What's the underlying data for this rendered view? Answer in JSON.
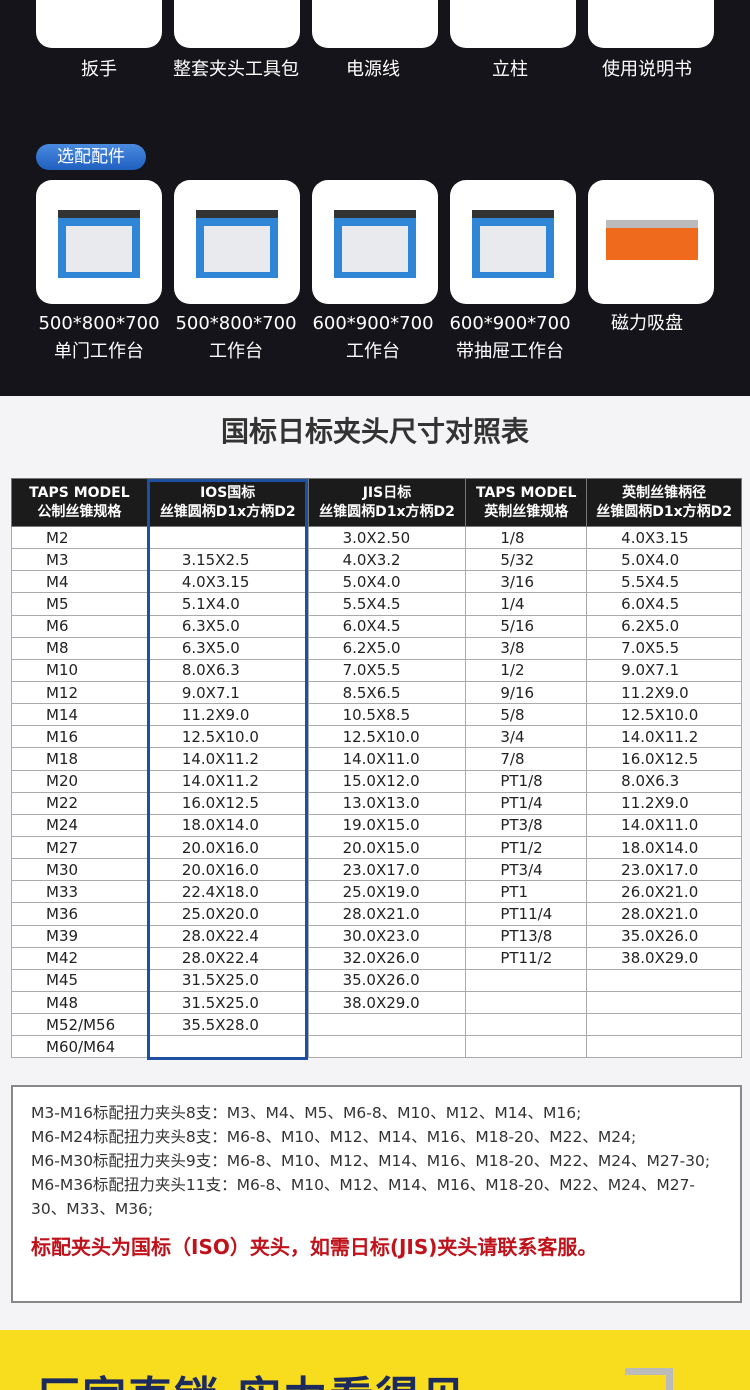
{
  "included": {
    "items": [
      "扳手",
      "整套夹头工具包",
      "电源线",
      "立柱",
      "使用说明书"
    ]
  },
  "optional": {
    "badge": "选配配件",
    "items": [
      {
        "line1": "500*800*700",
        "line2": "单门工作台",
        "icon": "workbench-image"
      },
      {
        "line1": "500*800*700",
        "line2": "工作台",
        "icon": "workbench-image"
      },
      {
        "line1": "600*900*700",
        "line2": "工作台",
        "icon": "workbench-image"
      },
      {
        "line1": "600*900*700",
        "line2": "带抽屉工作台",
        "icon": "workbench-image"
      },
      {
        "line1": "磁力吸盘",
        "line2": "",
        "icon": "magnetic-chuck-image"
      }
    ]
  },
  "table": {
    "title": "国标日标夹头尺寸对照表",
    "headers": [
      [
        "TAPS MODEL",
        "公制丝锥规格"
      ],
      [
        "IOS国标",
        "丝锥圆柄D1x方柄D2"
      ],
      [
        "JIS日标",
        "丝锥圆柄D1x方柄D2"
      ],
      [
        "TAPS MODEL",
        "英制丝锥规格"
      ],
      [
        "英制丝锥柄径",
        "丝锥圆柄D1x方柄D2"
      ]
    ],
    "highlight_color": "#1d4fa3",
    "rows": [
      [
        "M2",
        "",
        "3.0X2.50",
        "1/8",
        "4.0X3.15"
      ],
      [
        "M3",
        "3.15X2.5",
        "4.0X3.2",
        "5/32",
        "5.0X4.0"
      ],
      [
        "M4",
        "4.0X3.15",
        "5.0X4.0",
        "3/16",
        "5.5X4.5"
      ],
      [
        "M5",
        "5.1X4.0",
        "5.5X4.5",
        "1/4",
        "6.0X4.5"
      ],
      [
        "M6",
        "6.3X5.0",
        "6.0X4.5",
        "5/16",
        "6.2X5.0"
      ],
      [
        "M8",
        "6.3X5.0",
        "6.2X5.0",
        "3/8",
        "7.0X5.5"
      ],
      [
        "M10",
        "8.0X6.3",
        "7.0X5.5",
        "1/2",
        "9.0X7.1"
      ],
      [
        "M12",
        "9.0X7.1",
        "8.5X6.5",
        "9/16",
        "11.2X9.0"
      ],
      [
        "M14",
        "11.2X9.0",
        "10.5X8.5",
        "5/8",
        "12.5X10.0"
      ],
      [
        "M16",
        "12.5X10.0",
        "12.5X10.0",
        "3/4",
        "14.0X11.2"
      ],
      [
        "M18",
        "14.0X11.2",
        "14.0X11.0",
        "7/8",
        "16.0X12.5"
      ],
      [
        "M20",
        "14.0X11.2",
        "15.0X12.0",
        "PT1/8",
        "8.0X6.3"
      ],
      [
        "M22",
        "16.0X12.5",
        "13.0X13.0",
        "PT1/4",
        "11.2X9.0"
      ],
      [
        "M24",
        "18.0X14.0",
        "19.0X15.0",
        "PT3/8",
        "14.0X11.0"
      ],
      [
        "M27",
        "20.0X16.0",
        "20.0X15.0",
        "PT1/2",
        "18.0X14.0"
      ],
      [
        "M30",
        "20.0X16.0",
        "23.0X17.0",
        "PT3/4",
        "23.0X17.0"
      ],
      [
        "M33",
        "22.4X18.0",
        "25.0X19.0",
        "PT1",
        "26.0X21.0"
      ],
      [
        "M36",
        "25.0X20.0",
        "28.0X21.0",
        "PT11/4",
        "28.0X21.0"
      ],
      [
        "M39",
        "28.0X22.4",
        "30.0X23.0",
        "PT13/8",
        "35.0X26.0"
      ],
      [
        "M42",
        "28.0X22.4",
        "32.0X26.0",
        "PT11/2",
        "38.0X29.0"
      ],
      [
        "M45",
        "31.5X25.0",
        "35.0X26.0",
        "",
        ""
      ],
      [
        "M48",
        "31.5X25.0",
        "38.0X29.0",
        "",
        ""
      ],
      [
        "M52/M56",
        "35.5X28.0",
        "",
        "",
        ""
      ],
      [
        "M60/M64",
        "",
        "",
        "",
        ""
      ]
    ]
  },
  "notes": {
    "lines": [
      "M3-M16标配扭力夹头8支：M3、M4、M5、M6-8、M10、M12、M14、M16;",
      "M6-M24标配扭力夹头8支：M6-8、M10、M12、M14、M16、M18-20、M22、M24;",
      "M6-M30标配扭力夹头9支：M6-8、M10、M12、M14、M16、M18-20、M22、M24、M27-30;",
      "M6-M36标配扭力夹头11支：M6-8、M10、M12、M14、M16、M18-20、M22、M24、M27-30、M33、M36;"
    ],
    "warning": "标配夹头为国标（ISO）夹头，如需日标(JIS)夹头请联系客服。",
    "warning_color": "#c0121b"
  },
  "banner": {
    "slogan": "厂家直销 实力看得见",
    "background": "#f8dc1e"
  }
}
